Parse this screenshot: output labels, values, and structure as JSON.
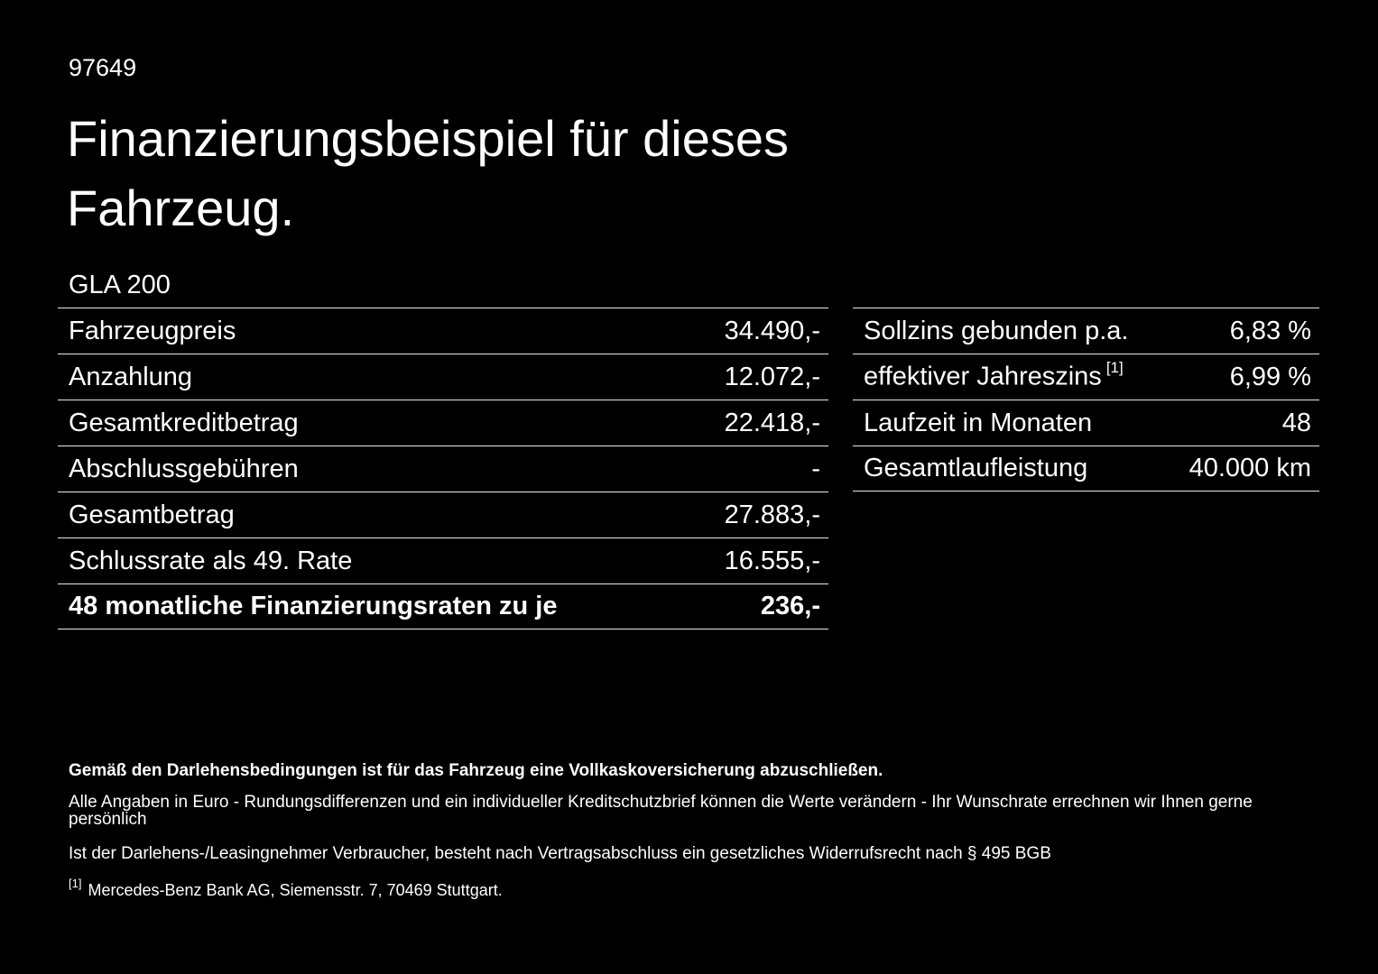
{
  "page": {
    "doc_id": "97649",
    "title": "Finanzierungsbeispiel für dieses Fahrzeug.",
    "model": "GLA 200"
  },
  "left_table": {
    "rows": [
      {
        "label": "Fahrzeugpreis",
        "value": "34.490,-"
      },
      {
        "label": "Anzahlung",
        "value": "12.072,-"
      },
      {
        "label": "Gesamtkreditbetrag",
        "value": "22.418,-"
      },
      {
        "label": "Abschlussgebühren",
        "value": "-"
      },
      {
        "label": "Gesamtbetrag",
        "value": "27.883,-"
      },
      {
        "label": "Schlussrate als 49. Rate",
        "value": "16.555,-"
      },
      {
        "label": "48 monatliche Finanzierungsraten zu je",
        "value": "236,-"
      }
    ]
  },
  "right_table": {
    "rows": [
      {
        "label": "Sollzins gebunden p.a.",
        "value": "6,83 %"
      },
      {
        "label": "effektiver Jahreszins",
        "sup": "[1]",
        "value": "6,99 %"
      },
      {
        "label": "Laufzeit in Monaten",
        "value": "48"
      },
      {
        "label": "Gesamtlaufleistung",
        "value": "40.000 km"
      }
    ]
  },
  "footer": {
    "insurance_note": "Gemäß den Darlehensbedingungen ist für das Fahrzeug eine Vollkaskoversicherung abzuschließen.",
    "note_line1": "Alle Angaben in Euro - Rundungsdifferenzen und ein individueller Kreditschutzbrief können die Werte verändern - Ihr Wunschrate errechnen wir Ihnen gerne persönlich",
    "note_line2": "Ist der Darlehens-/Leasingnehmer Verbraucher, besteht nach Vertragsabschluss ein gesetzliches Widerrufsrecht nach § 495 BGB",
    "footnote_marker": "[1]",
    "footnote_text": "Mercedes-Benz Bank AG, Siemensstr. 7, 70469 Stuttgart."
  }
}
